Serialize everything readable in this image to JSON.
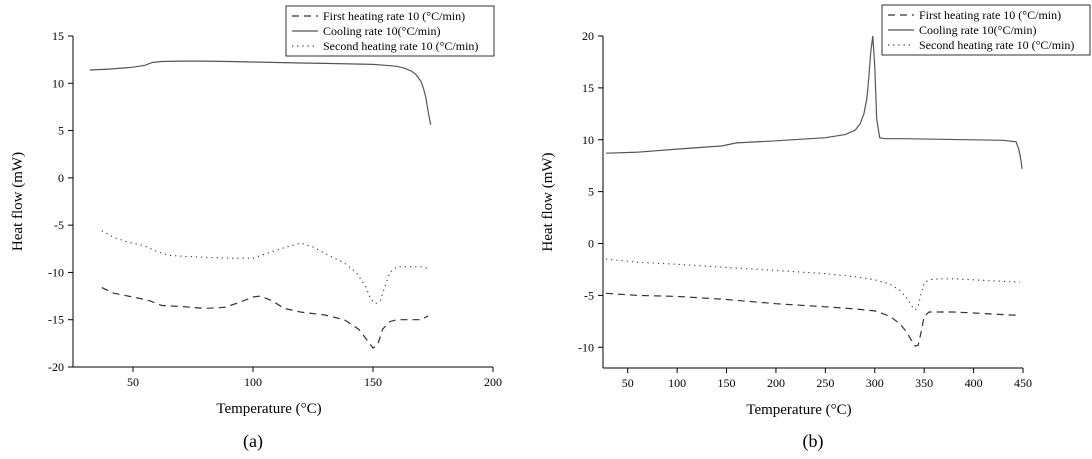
{
  "chart_data": [
    {
      "type": "line",
      "panel_label": "(a)",
      "xlabel": "Temperature (°C)",
      "ylabel": "Heat flow (mW)",
      "xlim": [
        25,
        200
      ],
      "ylim": [
        -20,
        15
      ],
      "xticks": [
        50,
        100,
        150,
        200
      ],
      "yticks": [
        -20,
        -15,
        -10,
        -5,
        0,
        5,
        10,
        15
      ],
      "grid": false,
      "legend_position": "top-right",
      "series": [
        {
          "name": "First heating rate 10 (°C/min)",
          "style": "dashed",
          "x": [
            37,
            42,
            48,
            52,
            57,
            62,
            70,
            80,
            88,
            94,
            100,
            103,
            108,
            113,
            120,
            130,
            138,
            144,
            148,
            150,
            152,
            154,
            157,
            160,
            165,
            170,
            173
          ],
          "y": [
            -11.6,
            -12.2,
            -12.5,
            -12.7,
            -13.0,
            -13.5,
            -13.6,
            -13.8,
            -13.7,
            -13.2,
            -12.6,
            -12.5,
            -13.0,
            -13.8,
            -14.2,
            -14.5,
            -15.0,
            -16.0,
            -17.3,
            -18.0,
            -17.6,
            -16.0,
            -15.2,
            -15.0,
            -15.0,
            -15.0,
            -14.6
          ]
        },
        {
          "name": "Cooling rate 10(°C/min)",
          "style": "solid",
          "x": [
            32,
            40,
            50,
            55,
            58,
            62,
            70,
            80,
            90,
            100,
            110,
            120,
            130,
            140,
            150,
            155,
            160,
            163,
            166,
            168,
            170,
            171,
            172,
            173,
            174
          ],
          "y": [
            11.4,
            11.5,
            11.7,
            11.9,
            12.2,
            12.3,
            12.35,
            12.35,
            12.3,
            12.25,
            12.2,
            12.15,
            12.1,
            12.05,
            12.0,
            11.9,
            11.8,
            11.6,
            11.3,
            10.9,
            10.2,
            9.5,
            8.5,
            7.0,
            5.6
          ]
        },
        {
          "name": "Second heating rate 10 (°C/min)",
          "style": "dotted",
          "x": [
            37,
            42,
            48,
            55,
            60,
            65,
            72,
            80,
            90,
            100,
            108,
            114,
            120,
            125,
            130,
            138,
            143,
            147,
            149,
            151,
            153,
            155,
            157,
            160,
            165,
            170,
            173
          ],
          "y": [
            -5.6,
            -6.3,
            -6.8,
            -7.2,
            -7.8,
            -8.2,
            -8.3,
            -8.4,
            -8.5,
            -8.5,
            -7.8,
            -7.3,
            -6.9,
            -7.3,
            -8.0,
            -9.0,
            -10.0,
            -11.5,
            -12.8,
            -13.3,
            -13.0,
            -11.5,
            -10.0,
            -9.4,
            -9.4,
            -9.4,
            -9.6
          ]
        }
      ]
    },
    {
      "type": "line",
      "panel_label": "(b)",
      "xlabel": "Temperature (°C)",
      "ylabel": "Heat flow (mW)",
      "xlim": [
        25,
        450
      ],
      "ylim": [
        -12,
        20
      ],
      "xticks": [
        50,
        100,
        150,
        200,
        250,
        300,
        350,
        400,
        450
      ],
      "yticks": [
        -10,
        -5,
        0,
        5,
        10,
        15,
        20
      ],
      "grid": false,
      "legend_position": "top-right",
      "series": [
        {
          "name": "First heating rate 10 (°C/min)",
          "style": "dashed",
          "x": [
            28,
            60,
            100,
            150,
            200,
            250,
            280,
            300,
            315,
            325,
            332,
            337,
            341,
            344,
            347,
            350,
            355,
            365,
            380,
            400,
            420,
            440,
            447
          ],
          "y": [
            -4.8,
            -5.0,
            -5.1,
            -5.4,
            -5.8,
            -6.1,
            -6.3,
            -6.5,
            -7.0,
            -7.7,
            -8.5,
            -9.3,
            -9.9,
            -9.8,
            -8.5,
            -7.0,
            -6.6,
            -6.6,
            -6.6,
            -6.7,
            -6.8,
            -6.9,
            -6.9
          ]
        },
        {
          "name": "Cooling rate 10(°C/min)",
          "style": "solid",
          "x": [
            28,
            60,
            100,
            130,
            145,
            160,
            200,
            250,
            270,
            280,
            285,
            289,
            292,
            294,
            296,
            298,
            300,
            302,
            305,
            310,
            330,
            360,
            400,
            430,
            443,
            446,
            448,
            449
          ],
          "y": [
            8.7,
            8.8,
            9.1,
            9.3,
            9.4,
            9.7,
            9.9,
            10.2,
            10.5,
            10.9,
            11.5,
            12.5,
            14.0,
            16.0,
            18.5,
            20.0,
            17.0,
            12.0,
            10.2,
            10.1,
            10.1,
            10.05,
            10.0,
            9.95,
            9.8,
            9.0,
            8.0,
            7.2
          ]
        },
        {
          "name": "Second heating rate 10 (°C/min)",
          "style": "dotted",
          "x": [
            28,
            60,
            100,
            150,
            200,
            250,
            280,
            300,
            315,
            325,
            333,
            337,
            341,
            344,
            347,
            350,
            355,
            365,
            380,
            400,
            420,
            440,
            447
          ],
          "y": [
            -1.5,
            -1.8,
            -2.0,
            -2.3,
            -2.6,
            -2.9,
            -3.2,
            -3.5,
            -3.9,
            -4.5,
            -5.3,
            -6.0,
            -6.4,
            -6.0,
            -4.8,
            -3.8,
            -3.5,
            -3.4,
            -3.4,
            -3.5,
            -3.6,
            -3.7,
            -3.7
          ]
        }
      ]
    }
  ]
}
